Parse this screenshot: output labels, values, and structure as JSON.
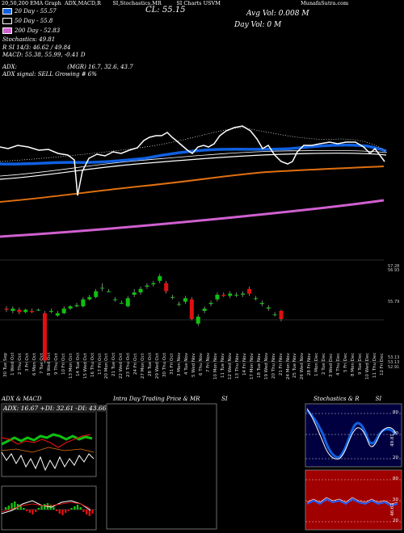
{
  "header": {
    "site": "MunafaSutra.com",
    "title_fragments": [
      "20,50,200 EMA Graph",
      "ADX,MACD,R",
      "SI,Stochastics,MR",
      "SI Charts USVM"
    ],
    "close": "CL: 55.15",
    "avg_vol": "Avg Vol: 0.008   M",
    "day_vol": "Day Vol: 0   M"
  },
  "legend": {
    "ema20": "20  Day - 55.57",
    "ema50": "50  Day - 55.8",
    "ema200": "200  Day - 52.83",
    "stoch": "Stochastics: 49.81",
    "rsi": "R           SI 14/3: 46.62 / 49.84",
    "macd": "MACD: 55.38, 55.99, -0.41 D",
    "adx": "ADX:                            (MGR) 16.7, 32.6, 43.7",
    "adx_signal": "ADX  signal: SELL Growing # 6%"
  },
  "colors": {
    "ema20": "#1060e0",
    "ema50": "#ffffff",
    "ema200": "#d060d0",
    "orange": "#e07010",
    "green": "#10c010",
    "red": "#e01010"
  },
  "price_labels": [
    "57.28",
    "56.93",
    "55.79",
    "53.13",
    "53.13",
    "52.91"
  ],
  "x_labels": [
    "30 Tue Sep",
    "1 Wed Oct",
    "2 Thu Oct",
    "3 Fri Oct",
    "6 Mon Oct",
    "7 Tue Oct",
    "8 Wed Oct",
    "9 Thu Oct",
    "10 Fri Oct",
    "13 Mon Oct",
    "14 Tue Oct",
    "15 Wed Oct",
    "16 Thu Oct",
    "17 Fri Oct",
    "20 Mon Oct",
    "21 Tue Oct",
    "22 Wed Oct",
    "23 Thu Oct",
    "24 Fri Oct",
    "27 Mon Oct",
    "28 Tue Oct",
    "29 Wed Oct",
    "30 Thu Oct",
    "31 Fri Oct",
    "3 Mon Nov",
    "4 Tue Nov",
    "5 Wed Nov",
    "6 Thu Nov",
    "7 Fri Nov",
    "10 Mon Nov",
    "11 Tue Nov",
    "12 Wed Nov",
    "13 Thu Nov",
    "14 Fri Nov",
    "17 Mon Nov",
    "18 Tue Nov",
    "19 Wed Nov",
    "20 Thu Nov",
    "21 Fri Nov",
    "24 Mon Nov",
    "25 Tue Nov",
    "26 Wed Nov",
    "28 Fri Nov",
    "1 Mon Dec",
    "2 Tue Dec",
    "3 Wed Dec",
    "4 Thu Dec",
    "5 Fri Dec",
    "8 Mon Dec",
    "9 Tue Dec",
    "10 Wed Dec",
    "11 Thu Dec",
    "12 Fri Dec"
  ],
  "panels": {
    "adx_title": "ADX  & MACD",
    "adx_values": "ADX: 16.67 +DI: 32.61 -DI: 43.66",
    "mrsi_title": "Intra  Day Trading Price  & MR",
    "mrsi_suffix": "SI",
    "stoch_title": "Stochastics & R",
    "stoch_suffix": "SI",
    "stoch_ticks": [
      "80",
      "50",
      "20"
    ],
    "stoch_last": "49.81",
    "rsi_ticks": [
      "80",
      "50",
      "20"
    ],
    "rsi_last": "46.62"
  },
  "candles": [
    {
      "o": 55.2,
      "c": 55.15,
      "h": 55.3,
      "l": 55.05
    },
    {
      "o": 55.1,
      "c": 55.2,
      "h": 55.3,
      "l": 55.0
    },
    {
      "o": 55.15,
      "c": 55.05,
      "h": 55.25,
      "l": 54.95
    },
    {
      "o": 55.05,
      "c": 55.15,
      "h": 55.2,
      "l": 55.0
    },
    {
      "o": 55.1,
      "c": 55.05,
      "h": 55.2,
      "l": 55.0
    },
    {
      "o": 55.15,
      "c": 55.15,
      "h": 55.2,
      "l": 55.1
    },
    {
      "o": 55.0,
      "c": 52.95,
      "h": 55.1,
      "l": 52.8
    },
    {
      "o": 55.1,
      "c": 55.1,
      "h": 55.2,
      "l": 55.0
    },
    {
      "o": 54.9,
      "c": 55.0,
      "h": 55.1,
      "l": 54.85
    },
    {
      "o": 55.0,
      "c": 55.2,
      "h": 55.3,
      "l": 54.95
    },
    {
      "o": 55.2,
      "c": 55.3,
      "h": 55.35,
      "l": 55.15
    },
    {
      "o": 55.3,
      "c": 55.35,
      "h": 55.45,
      "l": 55.25
    },
    {
      "o": 55.3,
      "c": 55.6,
      "h": 55.7,
      "l": 55.25
    },
    {
      "o": 55.6,
      "c": 55.7,
      "h": 55.8,
      "l": 55.55
    },
    {
      "o": 55.7,
      "c": 55.95,
      "h": 56.05,
      "l": 55.65
    },
    {
      "o": 56.1,
      "c": 56.1,
      "h": 56.3,
      "l": 55.95
    },
    {
      "o": 55.95,
      "c": 55.95,
      "h": 56.05,
      "l": 55.9
    },
    {
      "o": 55.6,
      "c": 55.6,
      "h": 55.7,
      "l": 55.5
    },
    {
      "o": 55.45,
      "c": 55.45,
      "h": 55.55,
      "l": 55.4
    },
    {
      "o": 55.3,
      "c": 55.65,
      "h": 55.75,
      "l": 55.25
    },
    {
      "o": 55.8,
      "c": 55.9,
      "h": 56.05,
      "l": 55.7
    },
    {
      "o": 55.9,
      "c": 56.05,
      "h": 56.15,
      "l": 55.8
    },
    {
      "o": 56.15,
      "c": 56.2,
      "h": 56.3,
      "l": 56.05
    },
    {
      "o": 56.25,
      "c": 56.3,
      "h": 56.4,
      "l": 56.15
    },
    {
      "o": 56.4,
      "c": 56.6,
      "h": 56.7,
      "l": 56.3
    },
    {
      "o": 56.3,
      "c": 55.95,
      "h": 56.4,
      "l": 55.85
    },
    {
      "o": 55.7,
      "c": 55.7,
      "h": 55.8,
      "l": 55.6
    },
    {
      "o": 55.4,
      "c": 55.4,
      "h": 55.5,
      "l": 55.3
    },
    {
      "o": 55.5,
      "c": 55.65,
      "h": 55.75,
      "l": 55.4
    },
    {
      "o": 55.6,
      "c": 54.75,
      "h": 55.7,
      "l": 54.7
    },
    {
      "o": 54.55,
      "c": 54.85,
      "h": 54.95,
      "l": 54.45
    },
    {
      "o": 55.1,
      "c": 55.2,
      "h": 55.3,
      "l": 55.0
    },
    {
      "o": 55.4,
      "c": 55.45,
      "h": 55.55,
      "l": 55.3
    },
    {
      "o": 55.6,
      "c": 55.8,
      "h": 55.9,
      "l": 55.5
    },
    {
      "o": 55.8,
      "c": 55.75,
      "h": 55.9,
      "l": 55.7
    },
    {
      "o": 55.75,
      "c": 55.85,
      "h": 55.95,
      "l": 55.65
    },
    {
      "o": 55.8,
      "c": 55.8,
      "h": 55.9,
      "l": 55.7
    },
    {
      "o": 55.8,
      "c": 55.85,
      "h": 55.95,
      "l": 55.7
    },
    {
      "o": 56.05,
      "c": 55.85,
      "h": 56.15,
      "l": 55.75
    },
    {
      "o": 55.65,
      "c": 55.65,
      "h": 55.75,
      "l": 55.55
    },
    {
      "o": 55.4,
      "c": 55.45,
      "h": 55.55,
      "l": 55.3
    },
    {
      "o": 55.2,
      "c": 55.25,
      "h": 55.35,
      "l": 55.1
    },
    {
      "o": 54.95,
      "c": 54.95,
      "h": 55.05,
      "l": 54.85
    },
    {
      "o": 55.1,
      "c": 54.75,
      "h": 55.15,
      "l": 54.65
    }
  ]
}
